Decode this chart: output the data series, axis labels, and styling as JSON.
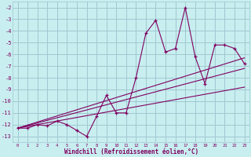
{
  "xlabel": "Windchill (Refroidissement éolien,°C)",
  "bg_color": "#c8eef0",
  "grid_color": "#a0c8d0",
  "line_color": "#800060",
  "x_data": [
    0,
    1,
    2,
    3,
    4,
    5,
    6,
    7,
    8,
    9,
    10,
    11,
    12,
    13,
    14,
    15,
    16,
    17,
    18,
    19,
    20,
    21,
    22,
    23
  ],
  "y_data": [
    -12.3,
    -12.3,
    -12.0,
    -12.1,
    -11.7,
    -12.0,
    -12.5,
    -13.0,
    -11.3,
    -9.5,
    -11.0,
    -11.0,
    -8.0,
    -4.2,
    -3.1,
    -5.8,
    -5.5,
    -2.0,
    -6.2,
    -8.5,
    -5.2,
    -5.2,
    -5.5,
    -6.8
  ],
  "trend1_x": [
    0,
    23
  ],
  "trend1_y": [
    -12.3,
    -7.2
  ],
  "trend2_x": [
    0,
    23
  ],
  "trend2_y": [
    -12.3,
    -6.3
  ],
  "trend3_x": [
    0,
    23
  ],
  "trend3_y": [
    -12.3,
    -8.8
  ],
  "ylim": [
    -13.5,
    -1.5
  ],
  "xlim": [
    -0.5,
    23.5
  ],
  "yticks": [
    -2,
    -3,
    -4,
    -5,
    -6,
    -7,
    -8,
    -9,
    -10,
    -11,
    -12,
    -13
  ],
  "xticks": [
    0,
    1,
    2,
    3,
    4,
    5,
    6,
    7,
    8,
    9,
    10,
    11,
    12,
    13,
    14,
    15,
    16,
    17,
    18,
    19,
    20,
    21,
    22,
    23
  ]
}
